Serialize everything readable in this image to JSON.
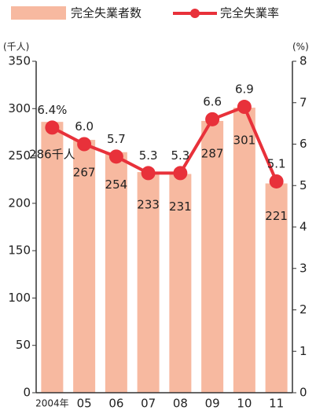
{
  "chart_data": {
    "type": "bar_line",
    "categories": [
      "2004年",
      "05",
      "06",
      "07",
      "08",
      "09",
      "10",
      "11"
    ],
    "series": [
      {
        "name": "完全失業者数",
        "color": "#f7b9a0",
        "type": "bar",
        "values": [
          286,
          267,
          254,
          233,
          231,
          287,
          301,
          221
        ],
        "value_labels": [
          "286千人",
          "267",
          "254",
          "233",
          "231",
          "287",
          "301",
          "221"
        ]
      },
      {
        "name": "完全失業率",
        "color": "#e8313a",
        "type": "line",
        "axis": "y2",
        "values": [
          6.4,
          6.0,
          5.7,
          5.3,
          5.3,
          6.6,
          6.9,
          5.1
        ],
        "value_labels": [
          "6.4%",
          "6.0",
          "5.7",
          "5.3",
          "5.3",
          "6.6",
          "6.9",
          "5.1"
        ]
      }
    ],
    "ylabel": "(千人)",
    "y2label": "(%)",
    "ylim": [
      0,
      350
    ],
    "yticks": [
      0,
      50,
      100,
      150,
      200,
      250,
      300,
      350
    ],
    "y2lim": [
      0,
      8
    ],
    "y2ticks": [
      0,
      1,
      2,
      3,
      4,
      5,
      6,
      7,
      8
    ]
  }
}
